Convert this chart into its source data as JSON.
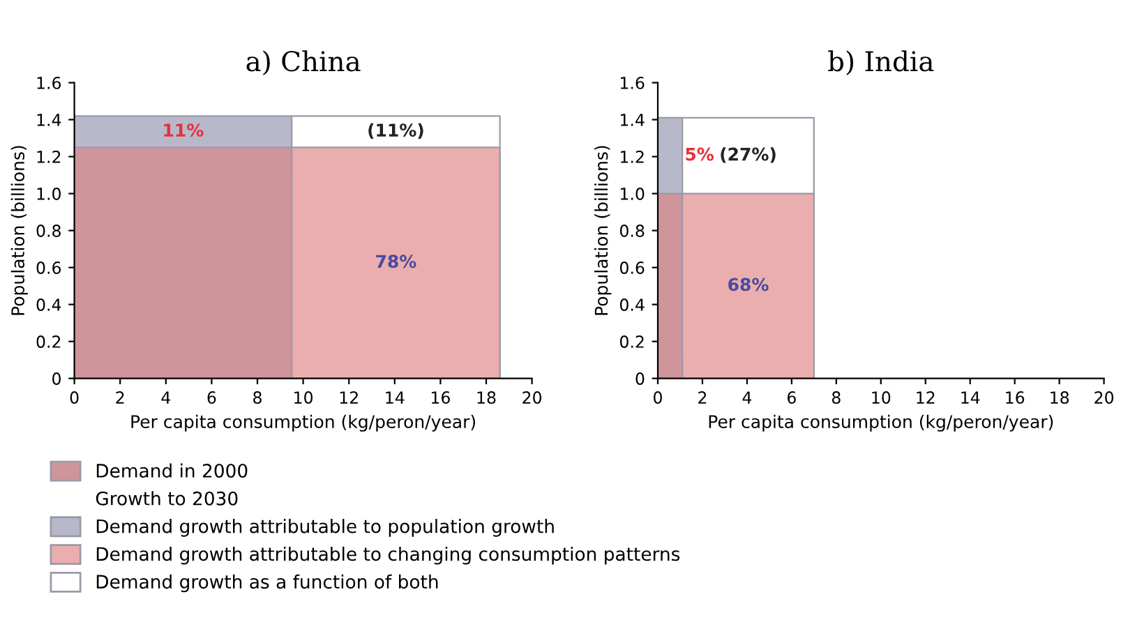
{
  "chart_data": [
    {
      "type": "area",
      "title": "a) China",
      "xlabel": "Per capita consumption (kg/peron/year)",
      "ylabel": "Population (billions)",
      "xlim": [
        0,
        20
      ],
      "xticks": [
        0,
        2,
        4,
        6,
        8,
        10,
        12,
        14,
        16,
        18,
        20
      ],
      "ylim": [
        0,
        1.6
      ],
      "yticks": [
        0,
        0.2,
        0.4,
        0.6,
        0.8,
        {
          "value": 1,
          "label": "1.0"
        },
        1.2,
        1.4,
        1.6
      ],
      "legend": "bottom",
      "legend_title": "Growth to 2030",
      "series": [
        {
          "name": "Demand in 2000",
          "color": "#cf959b",
          "x": [
            0,
            9.5
          ],
          "values": [
            1.25,
            1.25
          ]
        },
        {
          "name": "Demand growth attributable to population growth",
          "color": "#b7b9cb",
          "x": [
            0,
            9.5
          ],
          "values": [
            1.42,
            1.42
          ]
        },
        {
          "name": "Demand growth attributable to changing consumption patterns",
          "color": "#ebaeae",
          "x": [
            9.5,
            18.6
          ],
          "values": [
            1.25,
            1.25
          ]
        },
        {
          "name": "Demand growth as a function of both",
          "color": "#ffffff",
          "x": [
            9.5,
            18.6
          ],
          "values": [
            1.42,
            1.42
          ]
        }
      ],
      "annotations": [
        "11%",
        "78%",
        "(11%)"
      ]
    },
    {
      "type": "area",
      "title": "b) India",
      "xlabel": "Per capita consumption (kg/peron/year)",
      "ylabel": "Population (billions)",
      "xlim": [
        0,
        20
      ],
      "xticks": [
        0,
        2,
        4,
        6,
        8,
        10,
        12,
        14,
        16,
        18,
        20
      ],
      "ylim": [
        0,
        1.6
      ],
      "yticks": [
        0,
        0.2,
        0.4,
        0.6,
        0.8,
        {
          "value": 1,
          "label": "1.0"
        },
        1.2,
        1.4,
        1.6
      ],
      "series": [
        {
          "color": "#cf959b",
          "x": [
            0,
            1.1
          ],
          "values": [
            1.0,
            1.0
          ]
        },
        {
          "color": "#b7b9cb",
          "x": [
            0,
            1.1
          ],
          "values": [
            1.41,
            1.41
          ]
        },
        {
          "color": "#ebaeae",
          "x": [
            1.1,
            7.0
          ],
          "values": [
            1.0,
            1.0
          ]
        },
        {
          "color": "#ffffff",
          "x": [
            1.1,
            7.0
          ],
          "values": [
            1.41,
            1.41
          ]
        }
      ],
      "annotations": [
        "5%",
        "68%",
        "(27%)"
      ]
    }
  ]
}
